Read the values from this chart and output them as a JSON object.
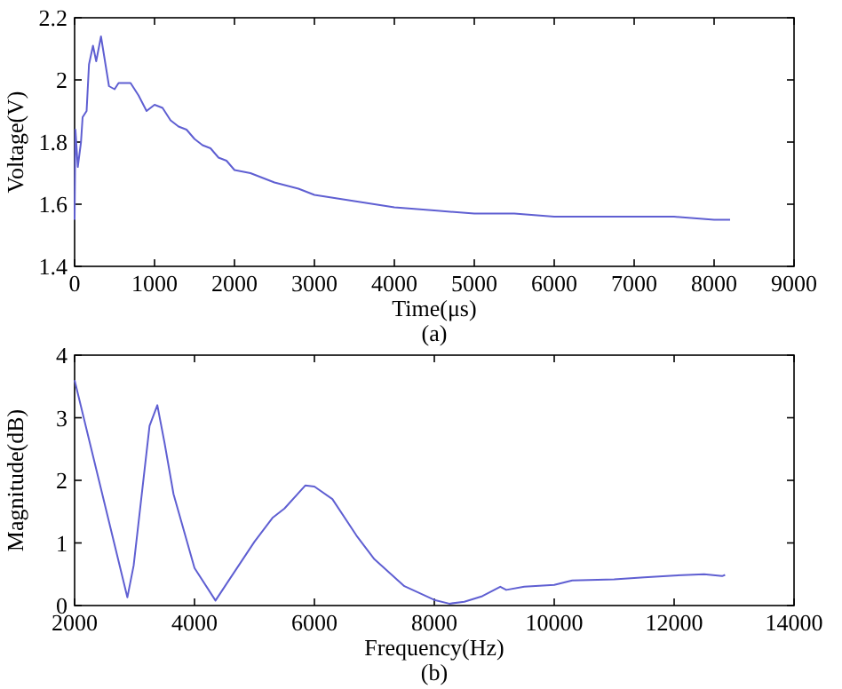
{
  "chart_data": [
    {
      "type": "line",
      "xlabel": "Time(μs)",
      "ylabel": "Voltage(V)",
      "annotations": [
        "(a)"
      ],
      "xlim": [
        0,
        9000
      ],
      "xticks": [
        0,
        1000,
        2000,
        3000,
        4000,
        5000,
        6000,
        7000,
        8000,
        9000
      ],
      "ylim": [
        1.4,
        2.2
      ],
      "yticks": [
        1.4,
        1.6,
        1.8,
        2,
        2.2
      ],
      "grid": false,
      "series": [
        {
          "color": "#5f5fd2",
          "x": [
            0,
            10,
            40,
            80,
            100,
            150,
            180,
            230,
            270,
            330,
            380,
            430,
            500,
            550,
            600,
            700,
            800,
            900,
            1000,
            1100,
            1200,
            1300,
            1400,
            1500,
            1600,
            1700,
            1800,
            1900,
            2000,
            2200,
            2500,
            2800,
            3000,
            3500,
            4000,
            4500,
            5000,
            5500,
            6000,
            6500,
            7000,
            7500,
            8000,
            8200
          ],
          "values": [
            1.55,
            1.84,
            1.72,
            1.8,
            1.88,
            1.9,
            2.05,
            2.11,
            2.06,
            2.14,
            2.06,
            1.98,
            1.97,
            1.99,
            1.99,
            1.99,
            1.95,
            1.9,
            1.92,
            1.91,
            1.87,
            1.85,
            1.84,
            1.81,
            1.79,
            1.78,
            1.75,
            1.74,
            1.71,
            1.7,
            1.67,
            1.65,
            1.63,
            1.61,
            1.59,
            1.58,
            1.57,
            1.57,
            1.56,
            1.56,
            1.56,
            1.56,
            1.55,
            1.55
          ]
        }
      ]
    },
    {
      "type": "line",
      "xlabel": "Frequency(Hz)",
      "ylabel": "Magnitude(dB)",
      "annotations": [
        "(b)"
      ],
      "xlim": [
        2000,
        14000
      ],
      "xticks": [
        2000,
        4000,
        6000,
        8000,
        10000,
        12000,
        14000
      ],
      "ylim": [
        0,
        4
      ],
      "yticks": [
        0,
        1,
        2,
        3,
        4
      ],
      "grid": false,
      "series": [
        {
          "color": "#5f5fd2",
          "x": [
            2000,
            2880,
            2985,
            3250,
            3380,
            3500,
            3650,
            4000,
            4350,
            5000,
            5300,
            5500,
            5850,
            6000,
            6300,
            6700,
            7000,
            7500,
            8000,
            8250,
            8500,
            8800,
            9100,
            9200,
            9500,
            10000,
            10300,
            11000,
            11500,
            12000,
            12500,
            12800,
            12850
          ],
          "values": [
            3.6,
            0.13,
            0.64,
            2.87,
            3.2,
            2.6,
            1.78,
            0.6,
            0.08,
            1.02,
            1.4,
            1.55,
            1.92,
            1.9,
            1.7,
            1.12,
            0.74,
            0.31,
            0.09,
            0.03,
            0.06,
            0.15,
            0.3,
            0.25,
            0.3,
            0.33,
            0.4,
            0.42,
            0.45,
            0.48,
            0.5,
            0.47,
            0.49
          ]
        }
      ]
    }
  ]
}
